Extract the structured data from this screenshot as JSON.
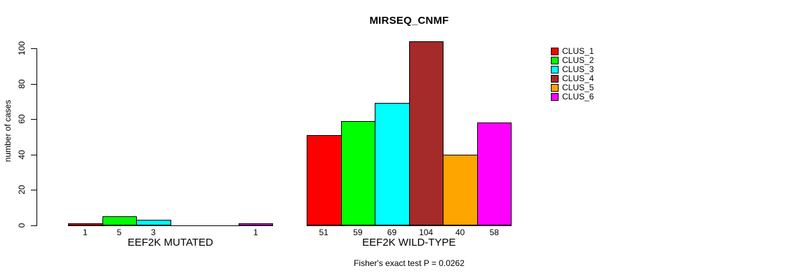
{
  "chart_data": {
    "type": "bar",
    "title": "MIRSEQ_CNMF",
    "ylabel": "number of cases",
    "footer": "Fisher's exact test P = 0.0262",
    "ylim": [
      0,
      100
    ],
    "yticks": [
      0,
      20,
      40,
      60,
      80,
      100
    ],
    "grid": false,
    "legend_position": "top-right",
    "clusters": [
      {
        "name": "CLUS_1",
        "color": "#FF0000"
      },
      {
        "name": "CLUS_2",
        "color": "#00FF00"
      },
      {
        "name": "CLUS_3",
        "color": "#00FFFF"
      },
      {
        "name": "CLUS_4",
        "color": "#A52A2A"
      },
      {
        "name": "CLUS_5",
        "color": "#FFA500"
      },
      {
        "name": "CLUS_6",
        "color": "#FF00FF"
      }
    ],
    "groups": [
      {
        "label": "EEF2K MUTATED",
        "values": [
          1,
          5,
          3,
          0,
          0,
          1
        ]
      },
      {
        "label": "EEF2K WILD-TYPE",
        "values": [
          51,
          59,
          69,
          104,
          40,
          58
        ]
      }
    ]
  }
}
